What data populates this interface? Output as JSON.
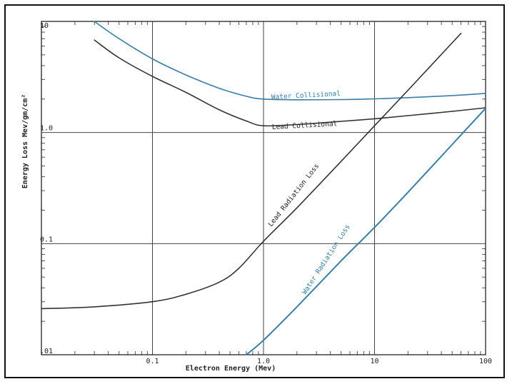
{
  "chart_data": {
    "type": "line",
    "title": "",
    "xlabel": "Electron Energy  (Mev)",
    "ylabel": "Energy  Loss   Mev/gm/cm²",
    "x_scale": "log",
    "y_scale": "log",
    "xlim": [
      0.01,
      100
    ],
    "ylim": [
      0.01,
      10
    ],
    "grid": true,
    "x_tick_labels": [
      "0.1",
      "1.0",
      "10",
      "100"
    ],
    "y_tick_labels": [
      "10",
      "1.0",
      "0.1",
      ".01"
    ],
    "series": [
      {
        "name": "Water Collisional",
        "color": "#3a7ea6",
        "x": [
          0.03,
          0.05,
          0.1,
          0.2,
          0.4,
          0.7,
          1.0,
          2,
          5,
          10,
          20,
          50,
          100
        ],
        "y": [
          10.0,
          7.0,
          4.6,
          3.3,
          2.5,
          2.12,
          2.0,
          1.97,
          1.98,
          2.01,
          2.06,
          2.15,
          2.25
        ]
      },
      {
        "name": "Lead Collisional",
        "color": "#333333",
        "x": [
          0.03,
          0.05,
          0.1,
          0.2,
          0.4,
          0.7,
          1.0,
          2,
          5,
          10,
          20,
          50,
          100
        ],
        "y": [
          6.8,
          4.7,
          3.2,
          2.3,
          1.6,
          1.27,
          1.15,
          1.18,
          1.26,
          1.33,
          1.42,
          1.55,
          1.67
        ]
      },
      {
        "name": "Lead Radiation Loss",
        "color": "#333333",
        "x": [
          0.01,
          0.03,
          0.1,
          0.2,
          0.4,
          0.6,
          1.0,
          2,
          5,
          10,
          20,
          60
        ],
        "y": [
          0.026,
          0.027,
          0.03,
          0.035,
          0.045,
          0.06,
          0.105,
          0.21,
          0.55,
          1.15,
          2.4,
          7.8
        ]
      },
      {
        "name": "Water Radiation Loss",
        "color": "#3a7ea6",
        "x": [
          0.7,
          1.0,
          2,
          5,
          10,
          20,
          50,
          100
        ],
        "y": [
          0.01,
          0.0135,
          0.027,
          0.07,
          0.14,
          0.29,
          0.78,
          1.65
        ]
      }
    ]
  }
}
